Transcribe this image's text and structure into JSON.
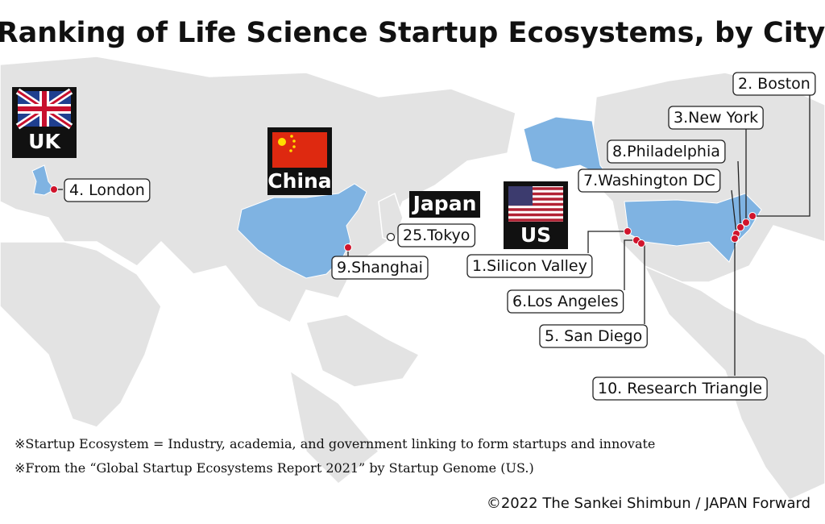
{
  "title": "Ranking of Life Science Startup Ecosystems, by City",
  "countries": [
    {
      "label": "UK"
    },
    {
      "label": "China"
    },
    {
      "label": "Japan"
    },
    {
      "label": "US"
    }
  ],
  "cities": [
    {
      "label": "1.Silicon Valley"
    },
    {
      "label": "2. Boston"
    },
    {
      "label": "3.New York"
    },
    {
      "label": "4. London"
    },
    {
      "label": "5. San Diego"
    },
    {
      "label": "6.Los Angeles"
    },
    {
      "label": "7.Washington DC"
    },
    {
      "label": "8.Philadelphia"
    },
    {
      "label": "9.Shanghai"
    },
    {
      "label": "10. Research Triangle"
    },
    {
      "label": "25.Tokyo"
    }
  ],
  "notes": [
    "※Startup Ecosystem = Industry, academia, and government linking to form startups and innovate",
    "※From the “Global Startup Ecosystems Report 2021” by Startup Genome (US.)"
  ],
  "credit": "©2022 The Sankei Shimbun / JAPAN Forward"
}
